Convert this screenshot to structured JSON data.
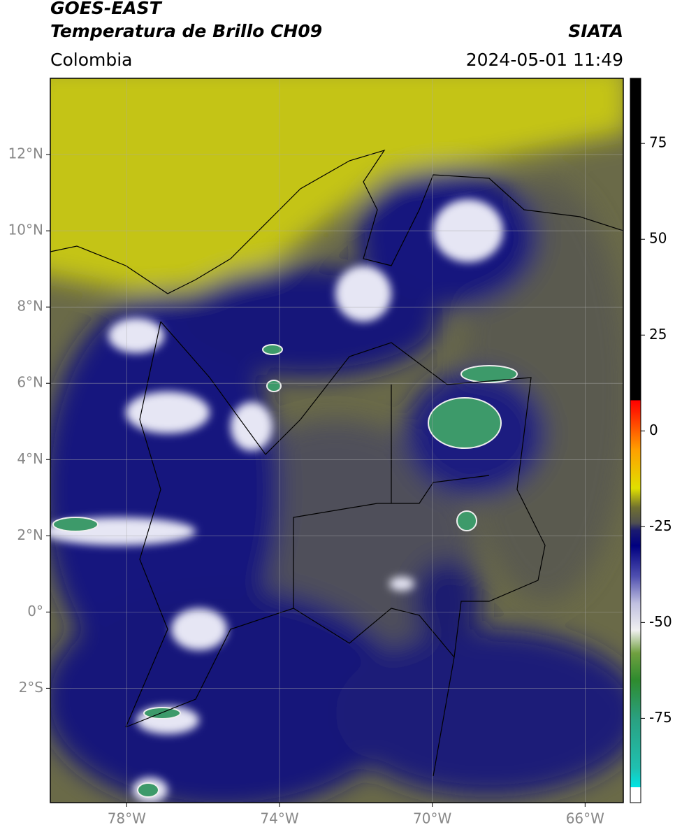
{
  "header": {
    "title": "GOES-EAST",
    "subtitle": "Temperatura de Brillo CH09",
    "source": "SIATA",
    "region": "Colombia",
    "datetime": "2024-05-01 11:49"
  },
  "map": {
    "lon_range": [
      -80,
      -65
    ],
    "lat_range": [
      -5,
      14
    ],
    "lon_ticks": [
      {
        "value": -78,
        "label": "78°W"
      },
      {
        "value": -74,
        "label": "74°W"
      },
      {
        "value": -70,
        "label": "70°W"
      },
      {
        "value": -66,
        "label": "66°W"
      }
    ],
    "lat_ticks": [
      {
        "value": 12,
        "label": "12°N"
      },
      {
        "value": 10,
        "label": "10°N"
      },
      {
        "value": 8,
        "label": "8°N"
      },
      {
        "value": 6,
        "label": "6°N"
      },
      {
        "value": 4,
        "label": "4°N"
      },
      {
        "value": 2,
        "label": "2°N"
      },
      {
        "value": 0,
        "label": "0°"
      },
      {
        "value": -2,
        "label": "2°S"
      }
    ],
    "grid": true
  },
  "colorbar": {
    "range": [
      -97,
      92
    ],
    "ticks": [
      75,
      50,
      25,
      0,
      -25,
      -50,
      -75
    ],
    "stops": [
      {
        "value": -97,
        "color": "#ffffff"
      },
      {
        "value": -93,
        "color": "#ffffff"
      },
      {
        "value": -93,
        "color": "#00e5e5"
      },
      {
        "value": -88,
        "color": "#20c0b0"
      },
      {
        "value": -75,
        "color": "#2aa080"
      },
      {
        "value": -65,
        "color": "#2e8b2e"
      },
      {
        "value": -58,
        "color": "#70a040"
      },
      {
        "value": -52,
        "color": "#f0f0f0"
      },
      {
        "value": -45,
        "color": "#c0c0e0"
      },
      {
        "value": -38,
        "color": "#5050b0"
      },
      {
        "value": -30,
        "color": "#000080"
      },
      {
        "value": -26,
        "color": "#1a1a70"
      },
      {
        "value": -24,
        "color": "#505050"
      },
      {
        "value": -20,
        "color": "#707030"
      },
      {
        "value": -15,
        "color": "#e0e000"
      },
      {
        "value": -5,
        "color": "#ffa000"
      },
      {
        "value": 5,
        "color": "#ff2000"
      },
      {
        "value": 8,
        "color": "#ff0000"
      },
      {
        "value": 8,
        "color": "#000000"
      },
      {
        "value": 92,
        "color": "#000000"
      }
    ]
  }
}
